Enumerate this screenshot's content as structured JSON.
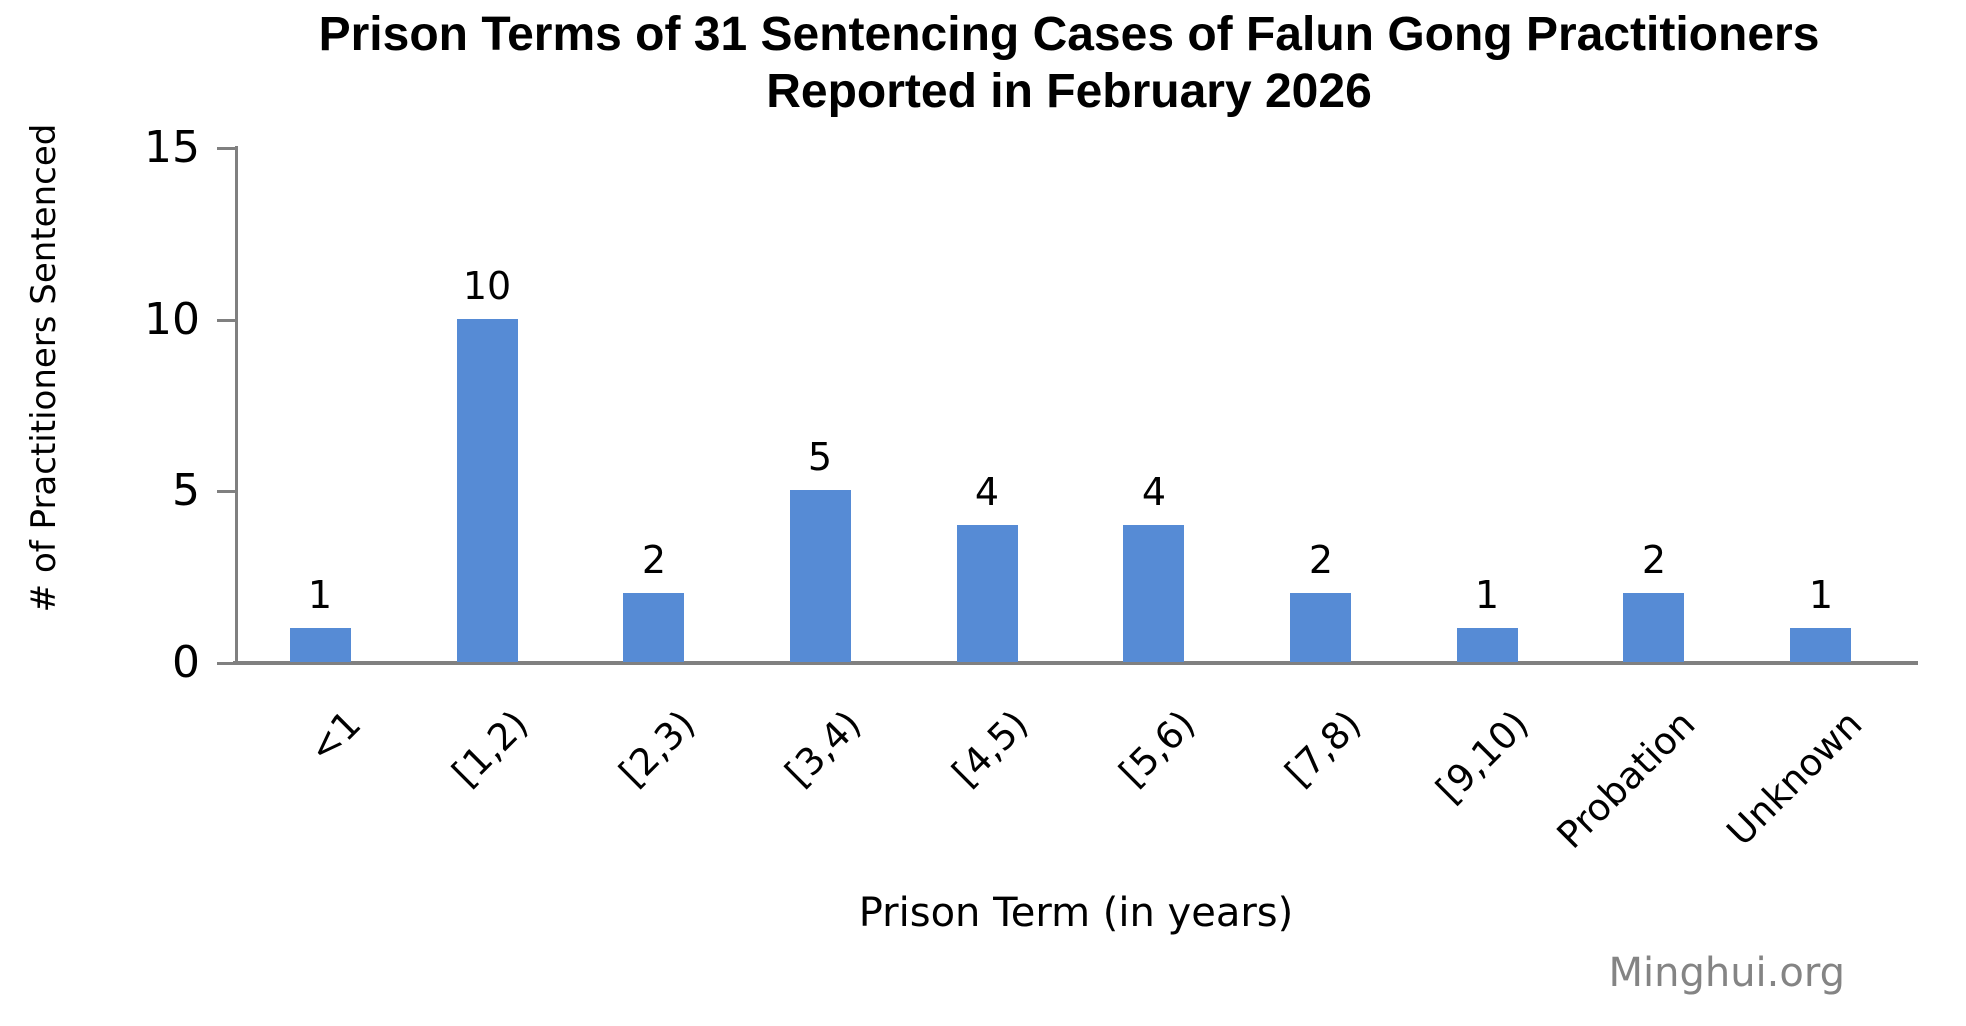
{
  "chart_data": {
    "type": "bar",
    "title": "Prison Terms of 31 Sentencing Cases of Falun Gong Practitioners Reported in February 2026",
    "title_lines": [
      "Prison Terms of 31 Sentencing Cases of Falun Gong Practitioners",
      "Reported in February 2026"
    ],
    "xlabel": "Prison Term (in years)",
    "ylabel": "# of Practitioners Sentenced",
    "categories": [
      "<1",
      "[1,2)",
      "[2,3)",
      "[3,4)",
      "[4,5)",
      "[5,6)",
      "[7,8)",
      "[9,10)",
      "Probation",
      "Unknown"
    ],
    "values": [
      1,
      10,
      2,
      5,
      4,
      4,
      2,
      1,
      2,
      1
    ],
    "yticks": [
      0,
      5,
      10,
      15
    ],
    "ylim": [
      0,
      15
    ],
    "grid": false,
    "legend": "none",
    "bar_color": "#568BD5",
    "axis_color": "#808080",
    "text_color": "#000000",
    "watermark": "Minghui.org",
    "watermark_color": "#848484"
  }
}
